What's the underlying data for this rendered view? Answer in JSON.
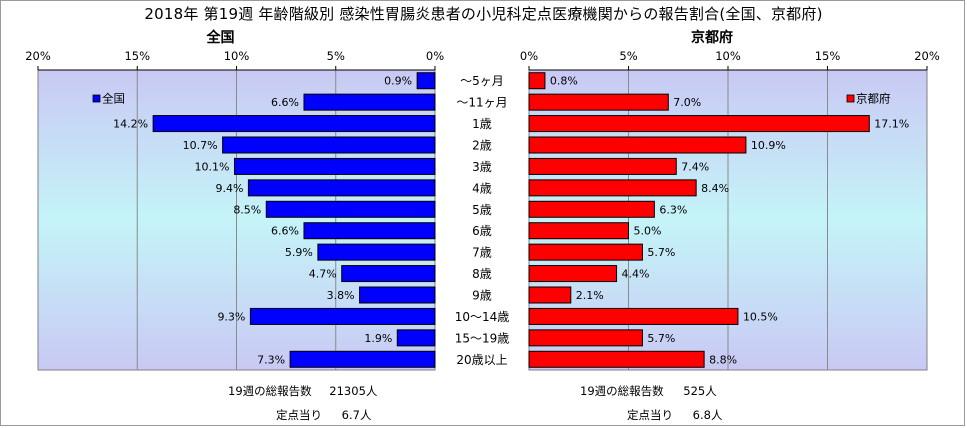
{
  "chart_data": {
    "type": "bar",
    "title": "2018年 第19週 年齢階級別 感染性胃腸炎患者の小児科定点医療機関からの報告割合(全国、京都府)",
    "categories": [
      "～5ヶ月",
      "～11ヶ月",
      "1歳",
      "2歳",
      "3歳",
      "4歳",
      "5歳",
      "6歳",
      "7歳",
      "8歳",
      "9歳",
      "10～14歳",
      "15～19歳",
      "20歳以上"
    ],
    "xlim": [
      0,
      20
    ],
    "ticks": [
      "0%",
      "5%",
      "10%",
      "15%",
      "20%"
    ],
    "tick_values": [
      0,
      5,
      10,
      15,
      20
    ],
    "left_panel": {
      "header": "全国",
      "legend": "全国",
      "legend_position": "top-left",
      "color": "#0000ff",
      "values": [
        0.9,
        6.6,
        14.2,
        10.7,
        10.1,
        9.4,
        8.5,
        6.6,
        5.9,
        4.7,
        3.8,
        9.3,
        1.9,
        7.3
      ],
      "total_label": "19週の総報告数",
      "total_value": "21305人",
      "per_site_label": "定点当り",
      "per_site_value": "6.7人"
    },
    "right_panel": {
      "header": "京都府",
      "legend": "京都府",
      "legend_position": "top-right",
      "color": "#ff0000",
      "values": [
        0.8,
        7.0,
        17.1,
        10.9,
        7.4,
        8.4,
        6.3,
        5.0,
        5.7,
        4.4,
        2.1,
        10.5,
        5.7,
        8.8
      ],
      "total_label": "19週の総報告数",
      "total_value": "525人",
      "per_site_label": "定点当り",
      "per_site_value": "6.8人"
    }
  }
}
